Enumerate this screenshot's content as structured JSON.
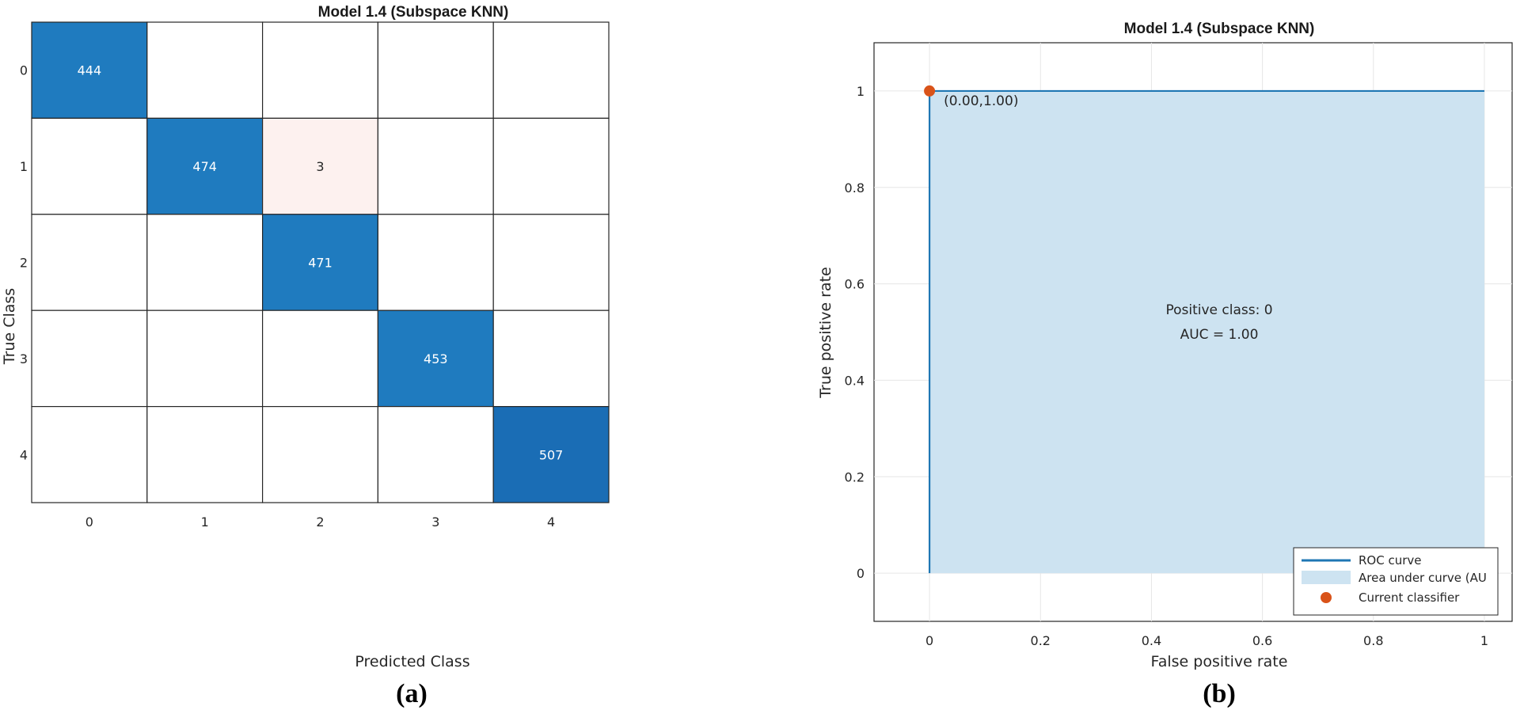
{
  "colors": {
    "cell_dark": "#1f7bbf",
    "cell_darkest": "#1a6db5",
    "cell_light": "#fdf1ef",
    "roc_line": "#1f77b4",
    "auc_fill": "#cde3f1",
    "classifier_dot": "#d95319",
    "grid": "#e6e6e6"
  },
  "chart_data": [
    {
      "type": "heatmap",
      "title": "Model 1.4 (Subspace KNN)",
      "xlabel": "Predicted Class",
      "ylabel": "True Class",
      "x_categories": [
        "0",
        "1",
        "2",
        "3",
        "4"
      ],
      "y_categories": [
        "0",
        "1",
        "2",
        "3",
        "4"
      ],
      "matrix": [
        [
          444,
          null,
          null,
          null,
          null
        ],
        [
          null,
          474,
          3,
          null,
          null
        ],
        [
          null,
          null,
          471,
          null,
          null
        ],
        [
          null,
          null,
          null,
          453,
          null
        ],
        [
          null,
          null,
          null,
          null,
          507
        ]
      ],
      "caption": "(a)"
    },
    {
      "type": "line",
      "title": "Model 1.4 (Subspace KNN)",
      "xlabel": "False positive rate",
      "ylabel": "True positive rate",
      "xlim": [
        -0.1,
        1.05
      ],
      "ylim": [
        -0.1,
        1.1
      ],
      "x_ticks": [
        0,
        0.2,
        0.4,
        0.6,
        0.8,
        1
      ],
      "x_tick_labels": [
        "0",
        "0.2",
        "0.4",
        "0.6",
        "0.8",
        "1"
      ],
      "y_ticks": [
        0,
        0.2,
        0.4,
        0.6,
        0.8,
        1
      ],
      "y_tick_labels": [
        "0",
        "0.2",
        "0.4",
        "0.6",
        "0.8",
        "1"
      ],
      "grid": true,
      "series": [
        {
          "name": "ROC curve",
          "x": [
            0,
            0,
            1
          ],
          "y": [
            0,
            1,
            1
          ]
        }
      ],
      "area_label": "Area under curve (AU",
      "classifier": {
        "name": "Current classifier",
        "x": 0.0,
        "y": 1.0,
        "label": "(0.00,1.00)"
      },
      "annotation_lines": [
        "Positive class: 0",
        "AUC = 1.00"
      ],
      "legend_position": "bottom-right",
      "caption": "(b)"
    }
  ]
}
